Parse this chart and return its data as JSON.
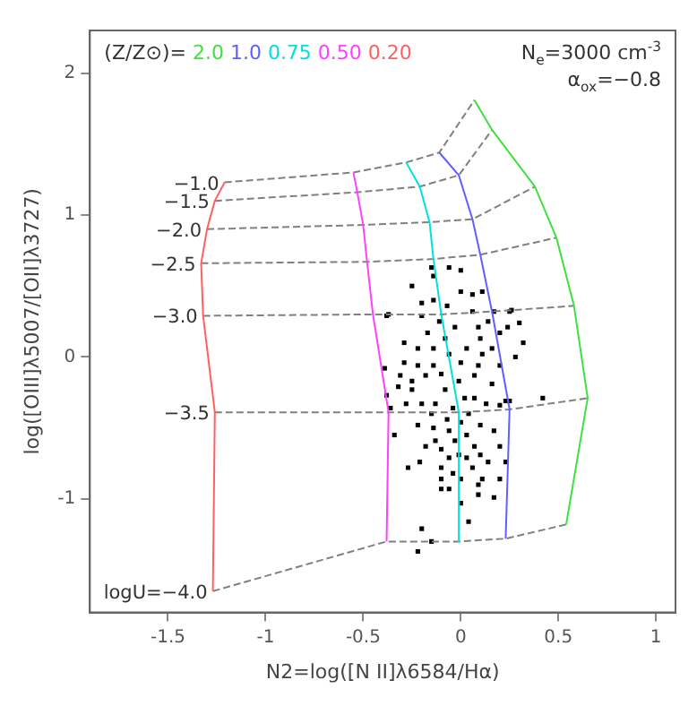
{
  "chart_data": {
    "type": "line",
    "xlabel": "N2=log([N II]λ6584/Hα)",
    "ylabel": "log([OIII]λ5007/[OII]λ3727)",
    "legend_title": "(Z/Z⊙)=",
    "legend": "top left",
    "grid": false,
    "xlim": [
      -1.9,
      1.1
    ],
    "xticks": [
      -1.5,
      -1,
      -0.5,
      0,
      0.5,
      1
    ],
    "ylim": [
      -1.8,
      2.3
    ],
    "yticks": [
      -1,
      0,
      1,
      2
    ],
    "annotations": [
      "N$_{e}$=3000 cm$^{-3}$",
      "α$_{ox}$=−0.8",
      {
        "text": "−1.0",
        "x": -1.21,
        "y": 1.23
      },
      {
        "text": "−1.5",
        "x": -1.26,
        "y": 1.1
      },
      {
        "text": "−2.0",
        "x": -1.3,
        "y": 0.9
      },
      {
        "text": "−2.5",
        "x": -1.33,
        "y": 0.66
      },
      {
        "text": "−3.0",
        "x": -1.32,
        "y": 0.29
      },
      {
        "text": "−3.5",
        "x": -1.26,
        "y": -0.39
      },
      {
        "text": "logU=−4.0",
        "x": -1.27,
        "y": -1.65
      }
    ],
    "series": [
      {
        "name": "2.0",
        "color": "#40e040",
        "marker": "none",
        "line_style": "solid",
        "x": [
          0.07,
          0.16,
          0.38,
          0.49,
          0.58,
          0.65,
          0.54
        ],
        "values": [
          1.81,
          1.6,
          1.2,
          0.84,
          0.36,
          -0.29,
          -1.18
        ]
      },
      {
        "name": "1.0",
        "color": "#6060ff",
        "marker": "none",
        "line_style": "solid",
        "x": [
          -0.11,
          -0.01,
          0.06,
          0.1,
          0.16,
          0.25,
          0.23
        ],
        "values": [
          1.44,
          1.28,
          0.97,
          0.72,
          0.32,
          -0.37,
          -1.28
        ]
      },
      {
        "name": "0.75",
        "color": "#00e0e0",
        "marker": "none",
        "line_style": "solid",
        "x": [
          -0.28,
          -0.21,
          -0.16,
          -0.14,
          -0.1,
          -0.01,
          -0.01
        ],
        "values": [
          1.37,
          1.2,
          0.95,
          0.69,
          0.3,
          -0.39,
          -1.3
        ]
      },
      {
        "name": "0.50",
        "color": "#ff40ff",
        "marker": "none",
        "line_style": "solid",
        "x": [
          -0.55,
          -0.53,
          -0.5,
          -0.48,
          -0.45,
          -0.37,
          -0.38
        ],
        "values": [
          1.3,
          1.16,
          0.93,
          0.67,
          0.3,
          -0.39,
          -1.3
        ]
      },
      {
        "name": "0.20",
        "color": "#ff6060",
        "marker": "none",
        "line_style": "solid",
        "x": [
          -1.21,
          -1.26,
          -1.3,
          -1.33,
          -1.32,
          -1.26,
          -1.27
        ],
        "values": [
          1.23,
          1.1,
          0.9,
          0.66,
          0.29,
          -0.39,
          -1.65
        ]
      },
      {
        "color": "#808080",
        "marker": "none",
        "line_style": "dashed",
        "x": [
          -1.21,
          -0.55,
          -0.28,
          -0.11,
          0.07
        ],
        "values": [
          1.23,
          1.3,
          1.37,
          1.44,
          1.81
        ]
      },
      {
        "color": "#808080",
        "marker": "none",
        "line_style": "dashed",
        "x": [
          -1.26,
          -0.53,
          -0.21,
          -0.01,
          0.16
        ],
        "values": [
          1.1,
          1.16,
          1.2,
          1.28,
          1.6
        ]
      },
      {
        "color": "#808080",
        "marker": "none",
        "line_style": "dashed",
        "x": [
          -1.3,
          -0.5,
          -0.16,
          0.06,
          0.38
        ],
        "values": [
          0.9,
          0.93,
          0.95,
          0.97,
          1.2
        ]
      },
      {
        "color": "#808080",
        "marker": "none",
        "line_style": "dashed",
        "x": [
          -1.33,
          -0.48,
          -0.14,
          0.1,
          0.49
        ],
        "values": [
          0.66,
          0.67,
          0.69,
          0.72,
          0.84
        ]
      },
      {
        "color": "#808080",
        "marker": "none",
        "line_style": "dashed",
        "x": [
          -1.32,
          -0.45,
          -0.1,
          0.16,
          0.58
        ],
        "values": [
          0.29,
          0.3,
          0.3,
          0.32,
          0.36
        ]
      },
      {
        "color": "#808080",
        "marker": "none",
        "line_style": "dashed",
        "x": [
          -1.26,
          -0.37,
          -0.01,
          0.25,
          0.65
        ],
        "values": [
          -0.39,
          -0.39,
          -0.39,
          -0.37,
          -0.29
        ]
      },
      {
        "color": "#808080",
        "marker": "none",
        "line_style": "dashed",
        "x": [
          -1.27,
          -0.38,
          -0.01,
          0.23,
          0.54
        ],
        "values": [
          -1.65,
          -1.3,
          -1.3,
          -1.28,
          -1.18
        ]
      },
      {
        "color": "#000000",
        "type": "scatter",
        "marker": "square",
        "x": [
          -0.15,
          -0.06,
          0.0,
          -0.14,
          0.06,
          0.11,
          -0.25,
          0.17,
          0.25,
          0.32,
          -0.38,
          -0.2,
          -0.11,
          -0.03,
          0.09,
          0.2,
          0.28,
          -0.29,
          -0.22,
          -0.14,
          -0.06,
          0.03,
          0.11,
          0.2,
          -0.39,
          -0.32,
          -0.25,
          -0.18,
          -0.1,
          -0.01,
          0.07,
          0.16,
          0.23,
          -0.38,
          -0.36,
          -0.28,
          -0.2,
          -0.13,
          -0.04,
          0.04,
          0.13,
          0.2,
          0.25,
          -0.34,
          -0.22,
          -0.14,
          -0.06,
          0.03,
          0.1,
          0.17,
          -0.18,
          -0.1,
          -0.01,
          0.07,
          0.2,
          0.23,
          -0.27,
          -0.21,
          -0.1,
          -0.04,
          0.03,
          0.14,
          -0.1,
          -0.06,
          0.09,
          0.11,
          0.17,
          0.0,
          0.04,
          -0.2,
          -0.15,
          -0.22,
          -0.29,
          -0.17,
          -0.08,
          0.0,
          0.09,
          0.16,
          -0.08,
          0.02,
          -0.14,
          -0.22,
          -0.07,
          0.0,
          -0.15,
          0.07,
          -0.25,
          -0.03,
          -0.13,
          0.06,
          0.0,
          0.14,
          0.06,
          -0.07,
          -0.14,
          -0.2,
          0.0,
          0.1,
          0.24,
          -0.31,
          -0.06,
          0.1,
          -0.1,
          0.2,
          0.09,
          -0.37,
          0.26,
          0.3,
          0.42
        ],
        "values": [
          0.63,
          0.63,
          0.61,
          0.57,
          0.44,
          0.46,
          0.5,
          0.32,
          0.32,
          0.1,
          0.29,
          0.29,
          0.25,
          0.21,
          0.21,
          0.17,
          0.0,
          0.1,
          0.06,
          0.06,
          0.02,
          0.06,
          0.02,
          -0.06,
          -0.08,
          -0.21,
          -0.17,
          -0.13,
          -0.12,
          -0.17,
          -0.13,
          -0.19,
          -0.31,
          -0.27,
          -0.36,
          -0.33,
          -0.33,
          -0.33,
          -0.36,
          -0.4,
          -0.33,
          -0.34,
          -0.31,
          -0.55,
          -0.48,
          -0.5,
          -0.52,
          -0.55,
          -0.48,
          -0.52,
          -0.63,
          -0.65,
          -0.69,
          -0.63,
          -0.63,
          -0.74,
          -0.78,
          -0.74,
          -0.78,
          -0.82,
          -0.71,
          -0.74,
          -0.93,
          -0.93,
          -0.9,
          -0.86,
          -0.99,
          -1.03,
          -1.16,
          -1.21,
          -1.3,
          -1.37,
          -0.04,
          0.17,
          0.13,
          -0.04,
          -0.06,
          0.06,
          -0.23,
          -0.29,
          -0.06,
          -0.06,
          -0.44,
          -0.46,
          -0.4,
          -0.29,
          -0.23,
          -0.59,
          -0.59,
          -0.78,
          -0.86,
          0.25,
          0.32,
          0.36,
          0.4,
          0.38,
          0.46,
          0.13,
          0.21,
          -0.13,
          -0.71,
          -0.69,
          -0.86,
          -0.86,
          -0.97,
          0.3,
          0.33,
          0.24,
          -0.29
        ]
      }
    ]
  }
}
